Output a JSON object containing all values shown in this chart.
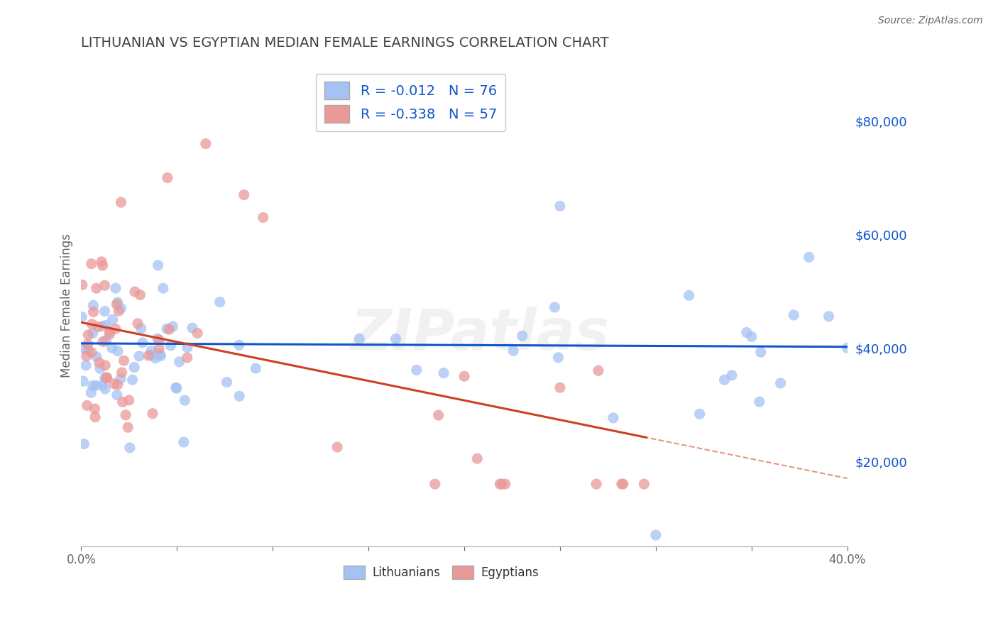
{
  "title": "LITHUANIAN VS EGYPTIAN MEDIAN FEMALE EARNINGS CORRELATION CHART",
  "source": "Source: ZipAtlas.com",
  "ylabel": "Median Female Earnings",
  "xmin": 0.0,
  "xmax": 0.4,
  "ymin": 5000,
  "ymax": 90000,
  "yticks": [
    20000,
    40000,
    60000,
    80000
  ],
  "blue_R": -0.012,
  "blue_N": 76,
  "pink_R": -0.338,
  "pink_N": 57,
  "blue_color": "#a4c2f4",
  "pink_color": "#ea9999",
  "blue_line_color": "#1155cc",
  "pink_line_color": "#cc4125",
  "watermark": "ZIPatlas",
  "legend_labels": [
    "Lithuanians",
    "Egyptians"
  ],
  "title_color": "#434343",
  "axis_label_color": "#1155cc",
  "tick_color": "#666666",
  "grid_color": "#b7b7b7",
  "background_color": "#ffffff"
}
